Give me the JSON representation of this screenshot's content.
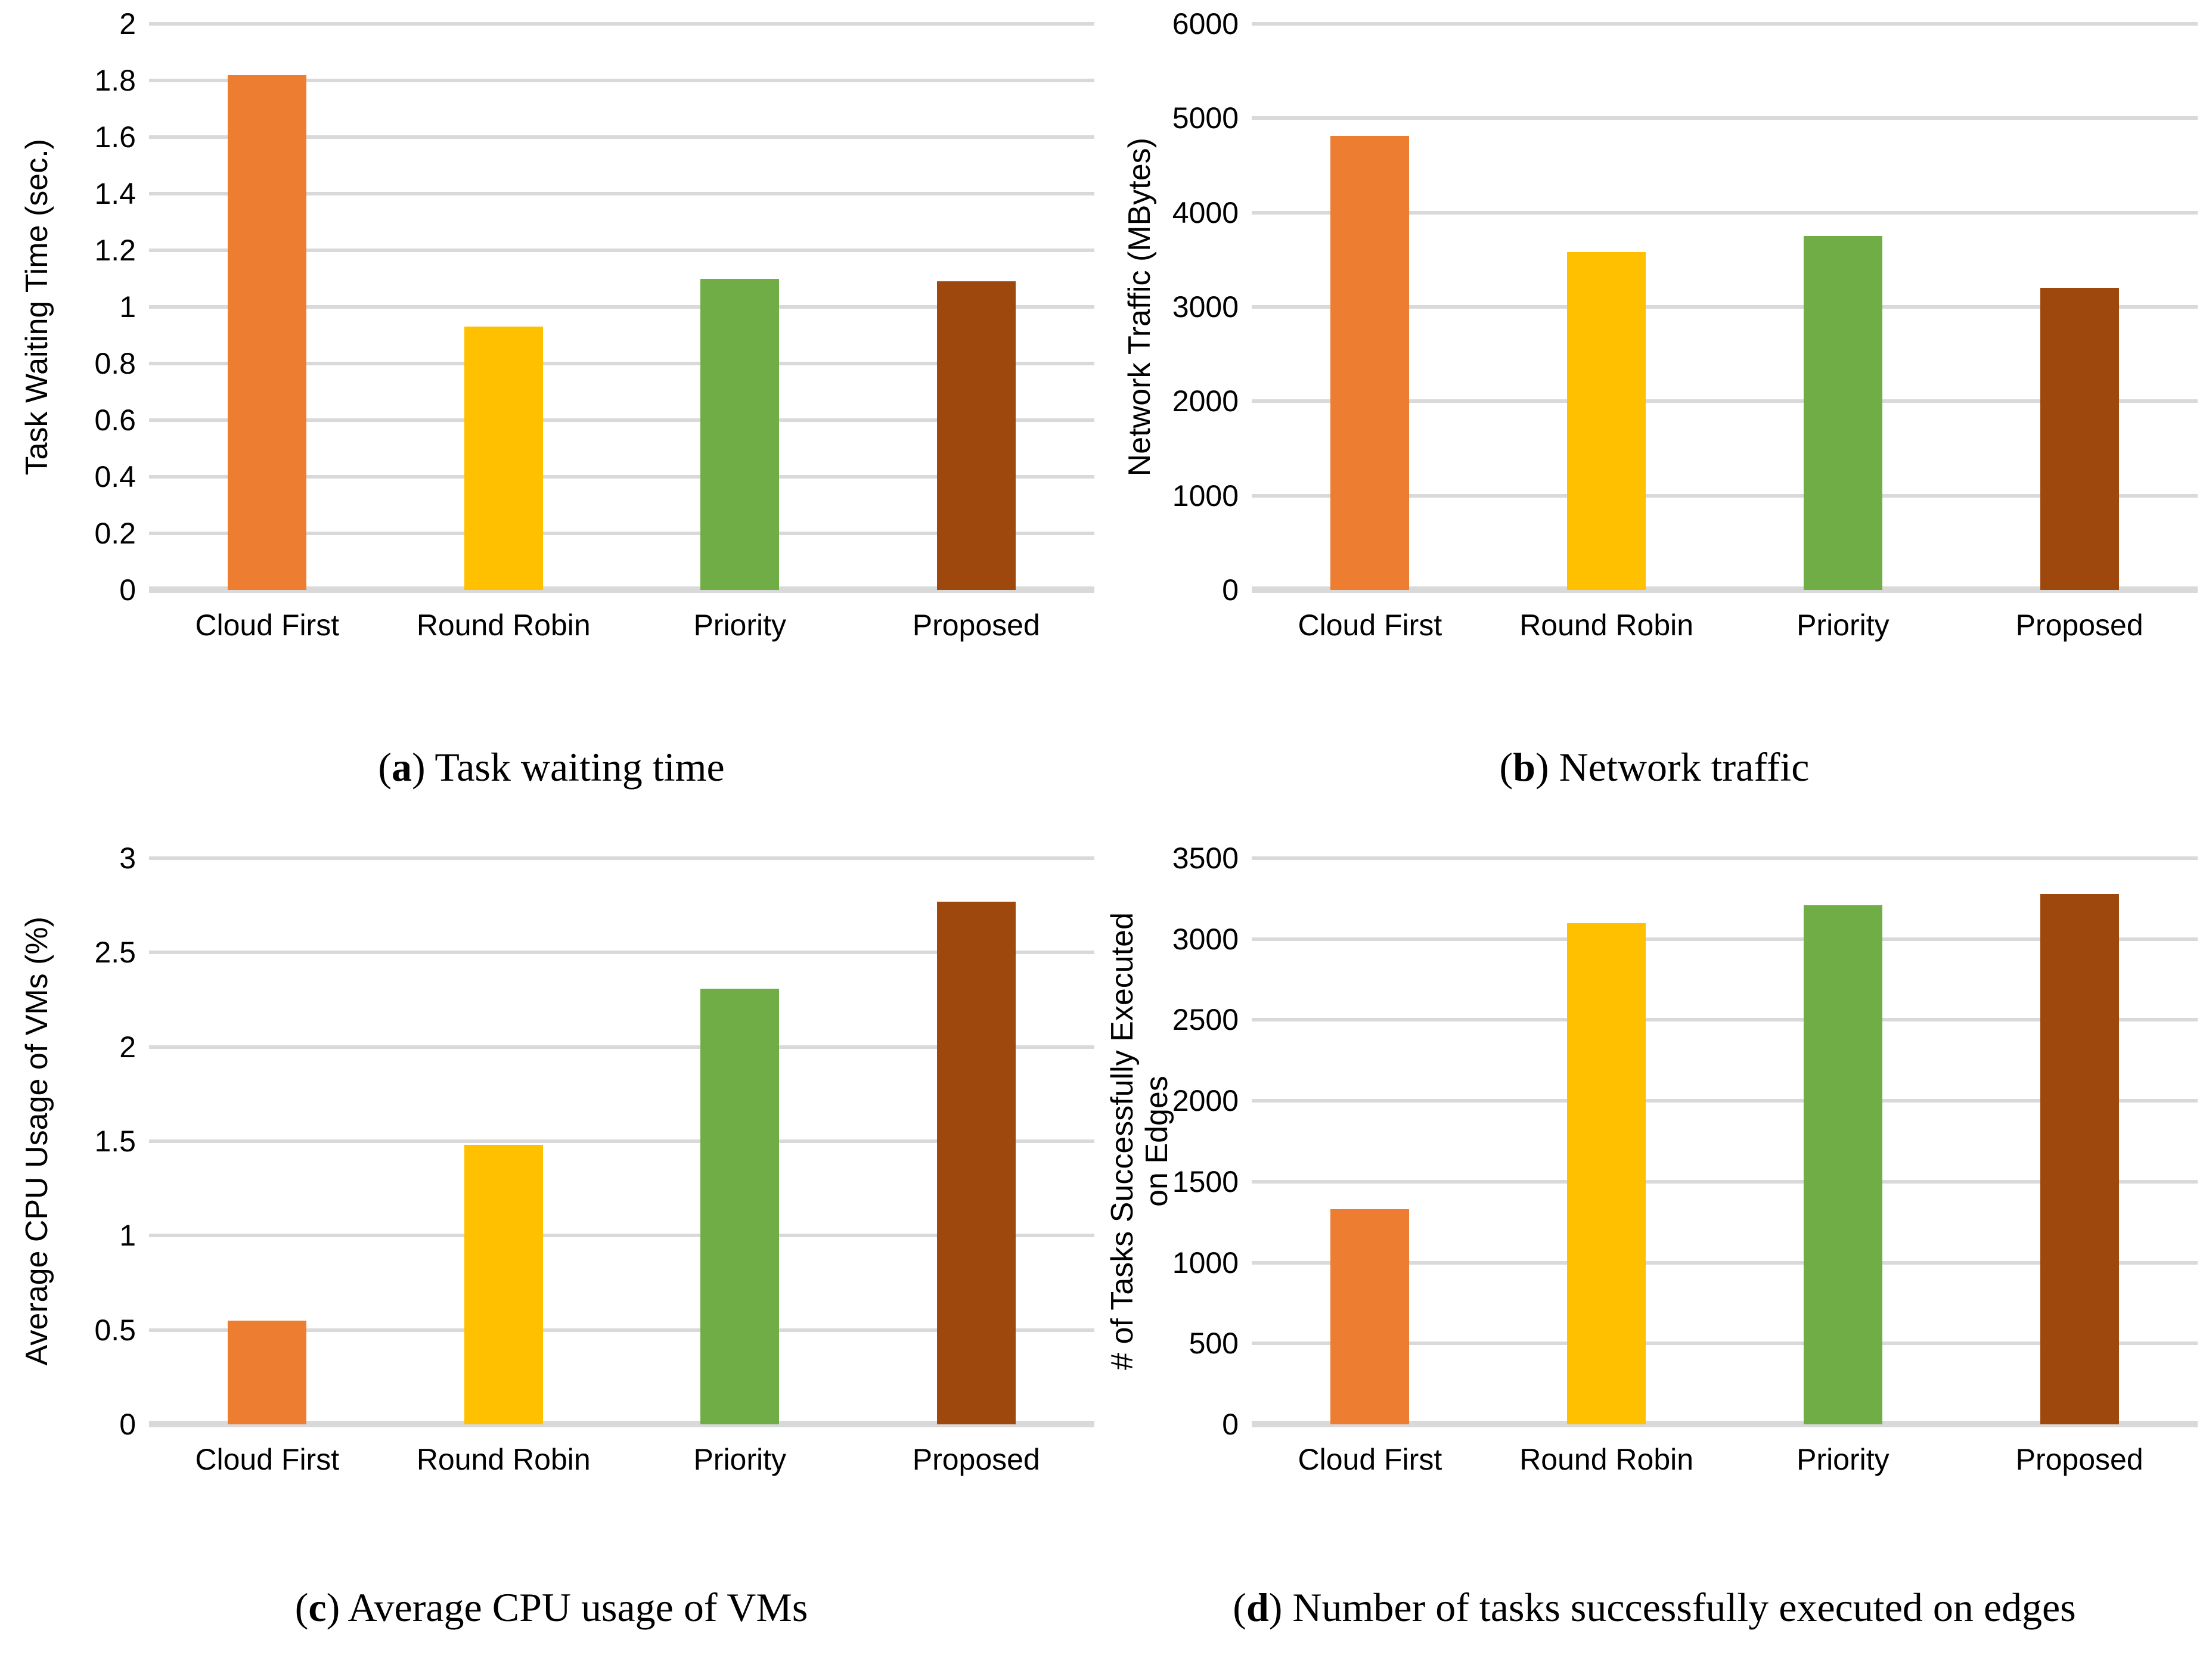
{
  "figure": {
    "caption_paren_open": "(",
    "caption_paren_close": ") ",
    "colors": {
      "cloud_first": "#ED7D31",
      "round_robin": "#FFC000",
      "priority": "#70AD47",
      "proposed": "#9E480E",
      "gridline": "#D9D9D9",
      "text": "#000000"
    }
  },
  "chart_data": [
    {
      "type": "bar",
      "caption_letter": "a",
      "caption_text": "Task waiting time",
      "ylabel_lines": [
        "Task Waiting Time (sec.)"
      ],
      "categories": [
        "Cloud First",
        "Round Robin",
        "Priority",
        "Proposed"
      ],
      "values": [
        1.82,
        0.93,
        1.1,
        1.09
      ],
      "bar_colors": [
        "#ED7D31",
        "#FFC000",
        "#70AD47",
        "#9E480E"
      ],
      "ylim": [
        0,
        2
      ],
      "ytick_step": 0.2,
      "yticks": [
        "2",
        "1.8",
        "1.6",
        "1.4",
        "1.2",
        "1",
        "0.8",
        "0.6",
        "0.4",
        "0.2",
        "0"
      ],
      "grid": true,
      "legend": "none"
    },
    {
      "type": "bar",
      "caption_letter": "b",
      "caption_text": "Network traffic",
      "ylabel_lines": [
        "Network Traffic (MBytes)"
      ],
      "categories": [
        "Cloud First",
        "Round Robin",
        "Priority",
        "Proposed"
      ],
      "values": [
        4810,
        3580,
        3750,
        3200
      ],
      "bar_colors": [
        "#ED7D31",
        "#FFC000",
        "#70AD47",
        "#9E480E"
      ],
      "ylim": [
        0,
        6000
      ],
      "ytick_step": 1000,
      "yticks": [
        "6000",
        "5000",
        "4000",
        "3000",
        "2000",
        "1000",
        "0"
      ],
      "grid": true,
      "legend": "none"
    },
    {
      "type": "bar",
      "caption_letter": "c",
      "caption_text": "Average CPU usage of VMs",
      "ylabel_lines": [
        "Average CPU Usage of VMs (%)"
      ],
      "categories": [
        "Cloud First",
        "Round Robin",
        "Priority",
        "Proposed"
      ],
      "values": [
        0.55,
        1.48,
        2.31,
        2.77
      ],
      "bar_colors": [
        "#ED7D31",
        "#FFC000",
        "#70AD47",
        "#9E480E"
      ],
      "ylim": [
        0,
        3
      ],
      "ytick_step": 0.5,
      "yticks": [
        "3",
        "2.5",
        "2",
        "1.5",
        "1",
        "0.5",
        "0"
      ],
      "grid": true,
      "legend": "none"
    },
    {
      "type": "bar",
      "caption_letter": "d",
      "caption_text": "Number of tasks successfully executed on edges",
      "ylabel_lines": [
        "# of Tasks Successfully Executed",
        "on Edges"
      ],
      "categories": [
        "Cloud First",
        "Round Robin",
        "Priority",
        "Proposed"
      ],
      "values": [
        1330,
        3100,
        3210,
        3280
      ],
      "bar_colors": [
        "#ED7D31",
        "#FFC000",
        "#70AD47",
        "#9E480E"
      ],
      "ylim": [
        0,
        3500
      ],
      "ytick_step": 500,
      "yticks": [
        "3500",
        "3000",
        "2500",
        "2000",
        "1500",
        "1000",
        "500",
        "0"
      ],
      "grid": true,
      "legend": "none"
    }
  ]
}
